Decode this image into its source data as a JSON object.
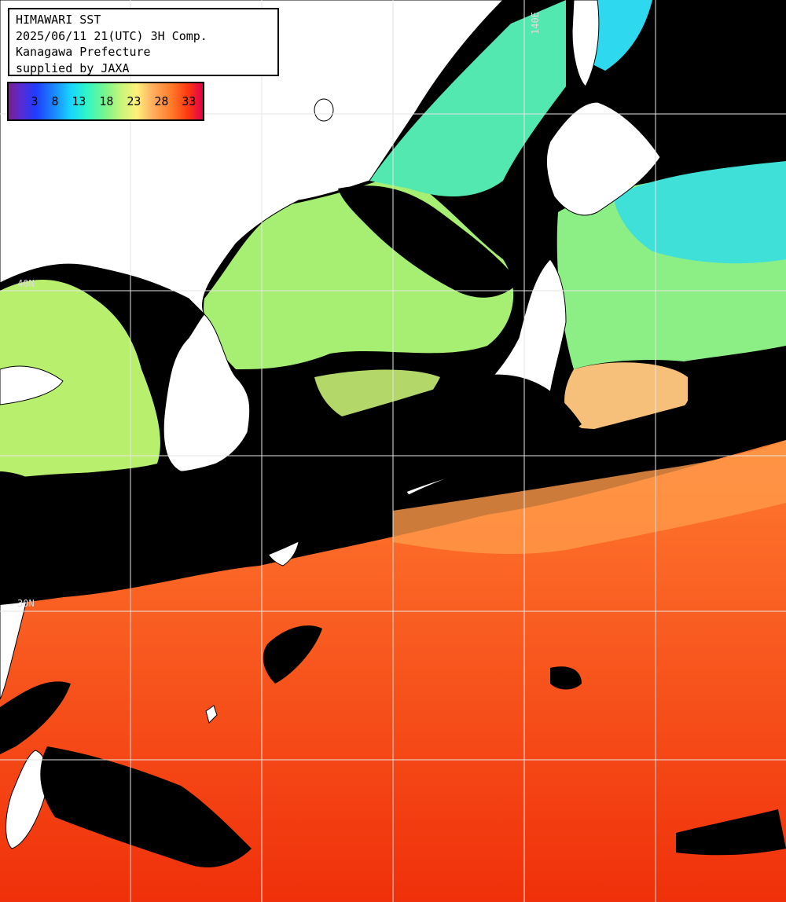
{
  "info": {
    "line1": "HIMAWARI SST",
    "line2": "2025/06/11 21(UTC) 3H Comp.",
    "line3": "Kanagawa Prefecture",
    "line4": "supplied by JAXA"
  },
  "colorbar": {
    "labels": [
      "3",
      "8",
      "13",
      "18",
      "23",
      "28",
      "33"
    ]
  },
  "grid_labels": {
    "lon_top": "140E",
    "lat_upper": "40N",
    "lat_lower": "30N"
  },
  "colors": {
    "land": "#ffffff",
    "cloud": "#000000",
    "grid": "#e6e6e6",
    "warm_sea": "#ff5a14",
    "cool_sea": "#9ff26a",
    "cold_sea": "#2fd8e8"
  }
}
